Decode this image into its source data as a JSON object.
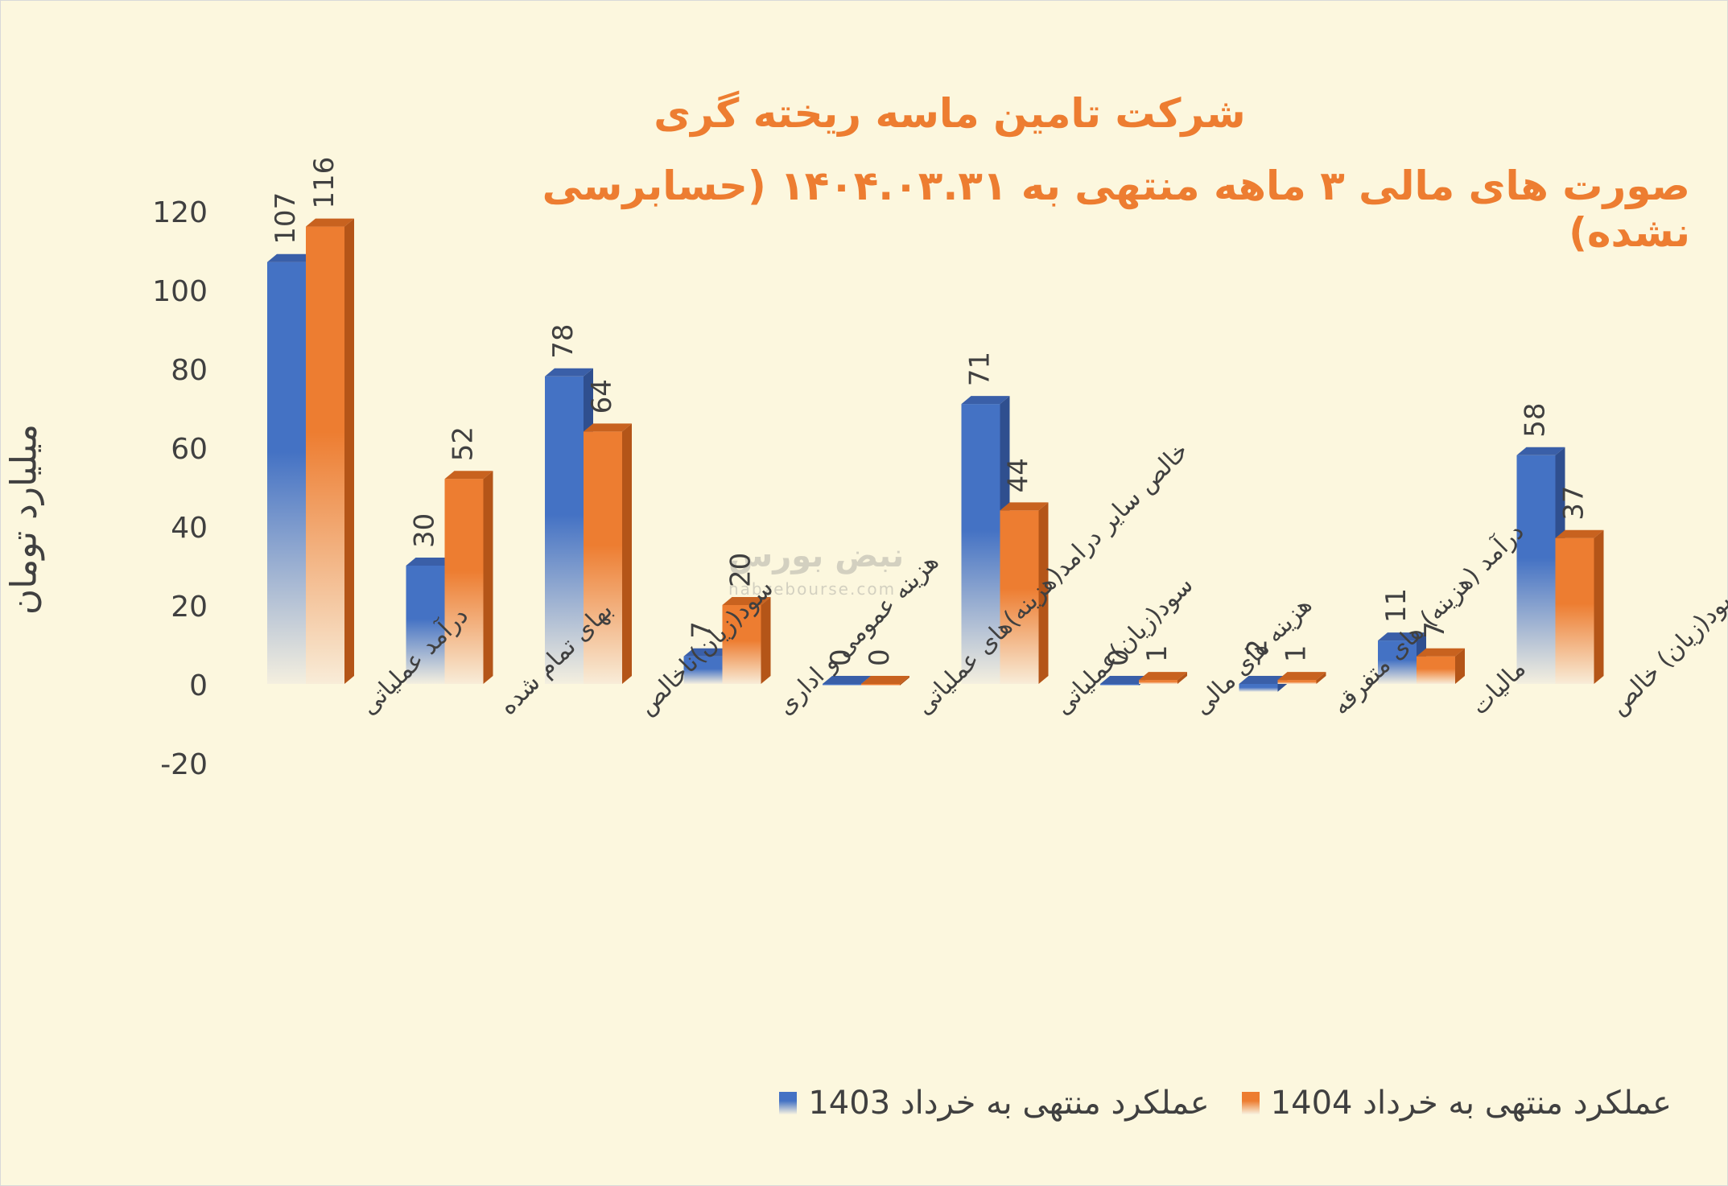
{
  "chart_data": {
    "type": "bar",
    "title": "شرکت تامین ماسه ریخته گری",
    "subtitle": "صورت های مالی ۳ ماهه منتهی به ۱۴۰۴.۰۳.۳۱ (حسابرسی نشده)",
    "ylabel": "میلیارد تومان",
    "xlabel": "",
    "ylim": [
      -20,
      120
    ],
    "yticks": [
      "-20",
      "0",
      "20",
      "40",
      "60",
      "80",
      "100",
      "120"
    ],
    "grid": false,
    "legend_position": "bottom",
    "categories": [
      "درآمد عملیاتی",
      "بهای تمام شده",
      "سود(زیان)ناخالص",
      "هزینه عمومی و اداری",
      "خالص سایر درامد(هزینه)های عملیاتی",
      "سود(زیان)عملیاتی",
      "هزینه های مالی",
      "درآمد (هزینه) های متفرقه",
      "مالیات",
      "سود(زیان) خالص"
    ],
    "series": [
      {
        "name": "عملکرد منتهی به خرداد 1403",
        "color": "#4472c4",
        "values": [
          107,
          30,
          78,
          7,
          0,
          71,
          0,
          -2,
          11,
          58
        ],
        "labels": [
          "107",
          "30",
          "78",
          "7",
          "0",
          "71",
          "0",
          "-2",
          "11",
          "58"
        ]
      },
      {
        "name": "عملکرد منتهی به خرداد 1404",
        "color": "#ed7d31",
        "values": [
          116,
          52,
          64,
          20,
          0,
          44,
          1,
          1,
          7,
          37
        ],
        "labels": [
          "116",
          "52",
          "64",
          "20",
          "0",
          "44",
          "1",
          "1",
          "7",
          "37"
        ]
      }
    ]
  },
  "legend": {
    "item_1403": "عملکرد منتهی به خرداد 1403",
    "item_1404": "عملکرد منتهی به خرداد 1404"
  },
  "watermark": {
    "brand": "نبض بورس",
    "url": "nabzebourse.com"
  }
}
